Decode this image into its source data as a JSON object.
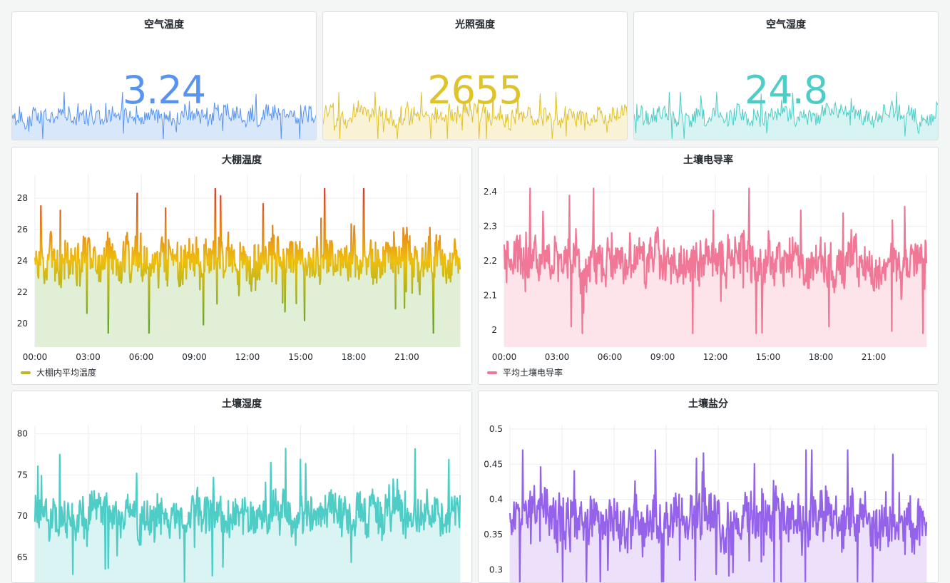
{
  "stats": [
    {
      "title": "空气温度",
      "value": "3.24",
      "color": "#5794f2",
      "fill": "#d9e7fb"
    },
    {
      "title": "光照强度",
      "value": "2655",
      "color": "#e0c22a",
      "fill": "#faf2d4"
    },
    {
      "title": "空气湿度",
      "value": "24.8",
      "color": "#4ecdc7",
      "fill": "#d8f4f2"
    }
  ],
  "chart_data": [
    {
      "type": "line",
      "title": "大棚温度",
      "x_ticks": [
        "00:00",
        "03:00",
        "06:00",
        "09:00",
        "12:00",
        "15:00",
        "18:00",
        "21:00"
      ],
      "y_ticks": [
        "20",
        "22",
        "24",
        "26",
        "28"
      ],
      "ylim": [
        18.5,
        29.5
      ],
      "series": [
        {
          "name": "大棚内平均温度",
          "center": 24,
          "spread": 1.4,
          "min": 19.4,
          "max": 28.6,
          "color": "#c0b62c"
        }
      ],
      "gradient": [
        "#d8402b",
        "#eebf0e",
        "#6aa62f"
      ],
      "fill": "#e2efd7",
      "legend": "bottom-left"
    },
    {
      "type": "line",
      "title": "土壤电导率",
      "x_ticks": [
        "00:00",
        "03:00",
        "06:00",
        "09:00",
        "12:00",
        "15:00",
        "18:00",
        "21:00"
      ],
      "y_ticks": [
        "2",
        "2.1",
        "2.2",
        "2.3",
        "2.4"
      ],
      "ylim": [
        1.95,
        2.45
      ],
      "series": [
        {
          "name": "平均土壤电导率",
          "center": 2.2,
          "spread": 0.065,
          "min": 1.99,
          "max": 2.41,
          "color": "#f07896"
        }
      ],
      "fill": "#fde4ea",
      "legend": "bottom-left"
    },
    {
      "type": "line",
      "title": "土壤湿度",
      "y_ticks": [
        "65",
        "70",
        "75",
        "80"
      ],
      "ylim": [
        61.8,
        81
      ],
      "series": [
        {
          "center": 70,
          "spread": 2.4,
          "min": 62,
          "max": 78.2,
          "color": "#4ecdc7"
        }
      ],
      "fill": "#d9f4f3"
    },
    {
      "type": "line",
      "title": "土壤盐分",
      "y_ticks": [
        "0.3",
        "0.35",
        "0.4",
        "0.45",
        "0.5"
      ],
      "ylim": [
        0.28,
        0.505
      ],
      "series": [
        {
          "center": 0.37,
          "spread": 0.035,
          "min": 0.282,
          "max": 0.47,
          "color": "#9463ea"
        }
      ],
      "fill": "#ece0fb"
    }
  ]
}
